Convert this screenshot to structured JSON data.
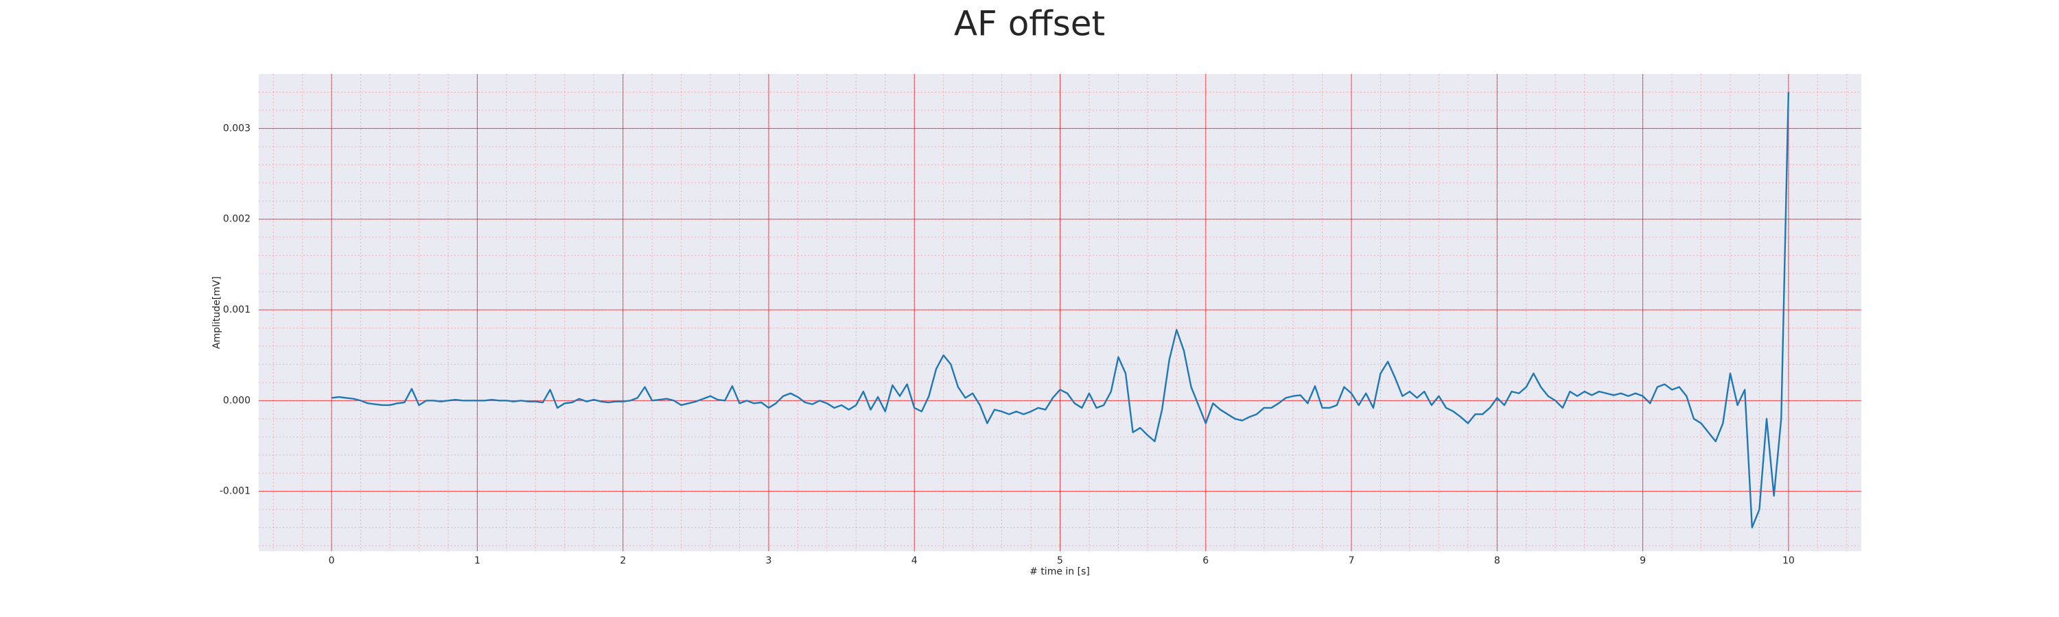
{
  "chart_data": {
    "type": "line",
    "title": "AF offset",
    "x_label": "# time in [s]",
    "y_label": "Amplitude[mV]",
    "color": "#1f77b4",
    "background": "#eaeaf2",
    "grid": true,
    "grid_color": "#ff0000",
    "minor_divisions": 5,
    "xlim": [
      -0.5,
      10.5
    ],
    "ylim": [
      -0.00166,
      0.0036
    ],
    "xticks": [
      0,
      1,
      2,
      3,
      4,
      5,
      6,
      7,
      8,
      9,
      10
    ],
    "yticks": [
      -0.001,
      {
        "value": 0,
        "label": "0.000"
      },
      0.001,
      0.002,
      0.003
    ],
    "x": [
      0,
      0.05,
      0.1,
      0.15,
      0.2,
      0.25,
      0.3,
      0.35,
      0.4,
      0.45,
      0.5,
      0.55,
      0.6,
      0.65,
      0.7,
      0.75,
      0.8,
      0.85,
      0.9,
      0.95,
      1,
      1.05,
      1.1,
      1.15,
      1.2,
      1.25,
      1.3,
      1.35,
      1.4,
      1.45,
      1.5,
      1.55,
      1.6,
      1.65,
      1.7,
      1.75,
      1.8,
      1.85,
      1.9,
      1.95,
      2,
      2.05,
      2.1,
      2.15,
      2.2,
      2.25,
      2.3,
      2.35,
      2.4,
      2.45,
      2.5,
      2.55,
      2.6,
      2.65,
      2.7,
      2.75,
      2.8,
      2.85,
      2.9,
      2.95,
      3,
      3.05,
      3.1,
      3.15,
      3.2,
      3.25,
      3.3,
      3.35,
      3.4,
      3.45,
      3.5,
      3.55,
      3.6,
      3.65,
      3.7,
      3.75,
      3.8,
      3.85,
      3.9,
      3.95,
      4,
      4.05,
      4.1,
      4.15,
      4.2,
      4.25,
      4.3,
      4.35,
      4.4,
      4.45,
      4.5,
      4.55,
      4.6,
      4.65,
      4.7,
      4.75,
      4.8,
      4.85,
      4.9,
      4.95,
      5,
      5.05,
      5.1,
      5.15,
      5.2,
      5.25,
      5.3,
      5.35,
      5.4,
      5.45,
      5.5,
      5.55,
      5.6,
      5.65,
      5.7,
      5.75,
      5.8,
      5.85,
      5.9,
      5.95,
      6,
      6.05,
      6.1,
      6.15,
      6.2,
      6.25,
      6.3,
      6.35,
      6.4,
      6.45,
      6.5,
      6.55,
      6.6,
      6.65,
      6.7,
      6.75,
      6.8,
      6.85,
      6.9,
      6.95,
      7,
      7.05,
      7.1,
      7.15,
      7.2,
      7.25,
      7.3,
      7.35,
      7.4,
      7.45,
      7.5,
      7.55,
      7.6,
      7.65,
      7.7,
      7.75,
      7.8,
      7.85,
      7.9,
      7.95,
      8,
      8.05,
      8.1,
      8.15,
      8.2,
      8.25,
      8.3,
      8.35,
      8.4,
      8.45,
      8.5,
      8.55,
      8.6,
      8.65,
      8.7,
      8.75,
      8.8,
      8.85,
      8.9,
      8.95,
      9,
      9.05,
      9.1,
      9.15,
      9.2,
      9.25,
      9.3,
      9.35,
      9.4,
      9.45,
      9.5,
      9.55,
      9.6,
      9.65,
      9.7,
      9.75,
      9.8,
      9.85,
      9.9,
      9.95,
      10
    ],
    "values": [
      3e-05,
      4e-05,
      3e-05,
      2e-05,
      0,
      -3e-05,
      -4e-05,
      -5e-05,
      -5e-05,
      -3e-05,
      -2e-05,
      0.00013,
      -5e-05,
      0,
      0,
      -1e-05,
      0,
      1e-05,
      0,
      0,
      0,
      0,
      1e-05,
      0,
      0,
      -1e-05,
      0,
      -1e-05,
      -1e-05,
      -2e-05,
      0.00012,
      -8e-05,
      -3e-05,
      -2e-05,
      2e-05,
      -1e-05,
      1e-05,
      -1e-05,
      -2e-05,
      -1e-05,
      -1e-05,
      0,
      3e-05,
      0.00015,
      0,
      1e-05,
      2e-05,
      0,
      -5e-05,
      -3e-05,
      -1e-05,
      2e-05,
      5e-05,
      1e-05,
      0,
      0.00016,
      -3e-05,
      0,
      -3e-05,
      -2e-05,
      -8e-05,
      -3e-05,
      5e-05,
      8e-05,
      4e-05,
      -2e-05,
      -4e-05,
      0,
      -3e-05,
      -8e-05,
      -5e-05,
      -0.0001,
      -5e-05,
      0.0001,
      -0.0001,
      4e-05,
      -0.00012,
      0.00017,
      5e-05,
      0.00018,
      -8e-05,
      -0.00012,
      5e-05,
      0.00035,
      0.0005,
      0.0004,
      0.00015,
      3e-05,
      8e-05,
      -5e-05,
      -0.00025,
      -0.0001,
      -0.00012,
      -0.00015,
      -0.00012,
      -0.00015,
      -0.00012,
      -8e-05,
      -0.0001,
      3e-05,
      0.00012,
      8e-05,
      -3e-05,
      -8e-05,
      8e-05,
      -8e-05,
      -5e-05,
      0.0001,
      0.00048,
      0.0003,
      -0.00035,
      -0.0003,
      -0.00038,
      -0.00045,
      -0.0001,
      0.00045,
      0.00078,
      0.00055,
      0.00015,
      -5e-05,
      -0.00025,
      -3e-05,
      -0.0001,
      -0.00015,
      -0.0002,
      -0.00022,
      -0.00018,
      -0.00015,
      -8e-05,
      -8e-05,
      -3e-05,
      3e-05,
      5e-05,
      6e-05,
      -3e-05,
      0.00016,
      -8e-05,
      -8e-05,
      -5e-05,
      0.00015,
      8e-05,
      -5e-05,
      8e-05,
      -8e-05,
      0.0003,
      0.00043,
      0.00025,
      5e-05,
      0.0001,
      3e-05,
      0.0001,
      -5e-05,
      5e-05,
      -8e-05,
      -0.00012,
      -0.00018,
      -0.00025,
      -0.00015,
      -0.00015,
      -8e-05,
      3e-05,
      -5e-05,
      0.0001,
      8e-05,
      0.00015,
      0.0003,
      0.00015,
      5e-05,
      0,
      -8e-05,
      0.0001,
      5e-05,
      0.0001,
      6e-05,
      0.0001,
      8e-05,
      6e-05,
      8e-05,
      5e-05,
      8e-05,
      5e-05,
      -3e-05,
      0.00015,
      0.00018,
      0.00012,
      0.00015,
      5e-05,
      -0.0002,
      -0.00025,
      -0.00035,
      -0.00045,
      -0.00025,
      0.0003,
      -5e-05,
      0.00012,
      -0.0014,
      -0.0012,
      -0.0002,
      -0.00105,
      -0.0002,
      0.0034
    ]
  }
}
